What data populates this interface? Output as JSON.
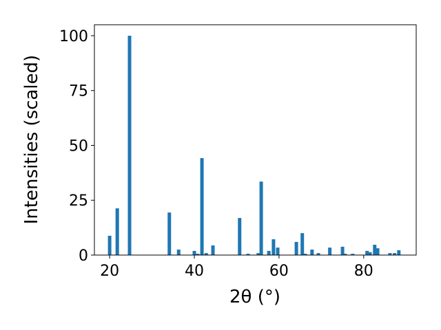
{
  "chart_data": {
    "type": "bar",
    "xlabel": "2θ (°)",
    "ylabel": "Intensities (scaled)",
    "color": "#1f77b4",
    "x": [
      20.0,
      21.8,
      24.7,
      34.1,
      36.3,
      40.0,
      40.8,
      41.8,
      42.8,
      44.4,
      50.7,
      52.7,
      55.1,
      55.8,
      57.6,
      58.7,
      59.7,
      64.1,
      65.5,
      66.2,
      67.8,
      69.3,
      72.0,
      75.0,
      75.6,
      77.4,
      80.8,
      81.5,
      82.6,
      83.3,
      86.2,
      87.3,
      88.3
    ],
    "values": [
      8.8,
      21.3,
      100,
      19.4,
      2.5,
      1.9,
      0.6,
      44.2,
      0.9,
      4.4,
      16.9,
      0.6,
      0.9,
      33.5,
      1.9,
      7.2,
      3.4,
      6.0,
      10.0,
      0.6,
      2.5,
      0.9,
      3.4,
      3.8,
      0.6,
      0.6,
      1.9,
      1.3,
      4.7,
      3.1,
      0.9,
      0.9,
      2.2
    ],
    "xlim": [
      16.4,
      92.4
    ],
    "ylim": [
      0,
      105
    ],
    "xticks": [
      20,
      40,
      60,
      80
    ],
    "yticks": [
      0,
      25,
      50,
      75,
      100
    ]
  }
}
